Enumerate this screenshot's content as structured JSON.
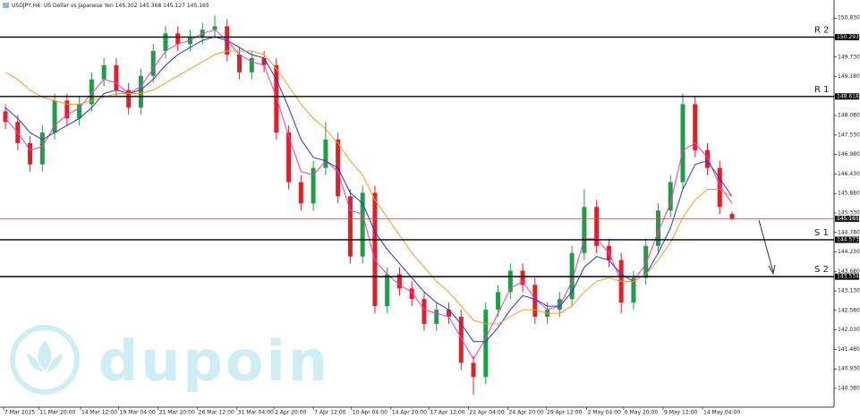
{
  "chart_data": {
    "type": "candlestick",
    "title": "USDJPY,H4:  US Dollar vs Japanese Yen  145.302 145.368 145.127 145.165",
    "watermark": "dupoin",
    "up_color": "#1e9e45",
    "down_color": "#e31e24",
    "open": [
      148.2,
      147.9,
      147.3,
      146.7,
      147.6,
      148.5,
      148.0,
      148.4,
      149.1,
      149.5,
      148.8,
      148.3,
      149.2,
      149.9,
      150.4,
      150.1,
      150.3,
      150.5,
      150.6,
      149.8,
      149.3,
      149.7,
      149.5,
      147.6,
      146.2,
      145.6,
      146.6,
      147.4,
      145.8,
      144.1,
      145.9,
      142.7,
      143.6,
      143.2,
      142.9,
      142.2,
      142.6,
      142.4,
      141.1,
      140.7,
      142.6,
      143.1,
      143.7,
      143.3,
      142.4,
      142.6,
      142.9,
      144.2,
      145.5,
      144.4,
      144.0,
      142.8,
      143.5,
      144.4,
      145.4,
      146.2,
      148.4,
      147.1,
      146.6,
      145.302
    ],
    "high": [
      148.4,
      148.1,
      147.5,
      147.8,
      148.7,
      148.7,
      148.6,
      149.3,
      149.7,
      149.7,
      149.0,
      149.4,
      150.1,
      150.6,
      150.6,
      150.5,
      150.7,
      150.9,
      150.8,
      150.0,
      149.9,
      149.9,
      149.7,
      147.8,
      146.4,
      146.8,
      147.9,
      147.6,
      146.0,
      146.1,
      146.1,
      143.8,
      143.8,
      143.4,
      143.1,
      142.8,
      142.8,
      142.6,
      141.3,
      142.8,
      143.3,
      143.9,
      143.9,
      143.5,
      142.8,
      143.1,
      144.4,
      146.0,
      145.7,
      144.6,
      144.2,
      143.7,
      144.6,
      145.6,
      146.4,
      148.7,
      148.6,
      147.3,
      146.8,
      145.368
    ],
    "low": [
      147.7,
      147.1,
      146.5,
      146.5,
      147.4,
      147.8,
      147.8,
      148.2,
      148.9,
      148.6,
      148.1,
      148.1,
      149.0,
      149.7,
      149.9,
      149.9,
      150.1,
      150.3,
      149.6,
      149.1,
      149.1,
      149.3,
      147.4,
      146.0,
      145.4,
      145.4,
      146.4,
      145.6,
      143.9,
      143.9,
      142.5,
      142.5,
      143.0,
      142.7,
      142.0,
      142.0,
      142.2,
      140.9,
      140.2,
      140.5,
      142.4,
      142.9,
      143.1,
      142.2,
      142.2,
      142.4,
      142.7,
      144.0,
      144.2,
      143.8,
      142.5,
      142.6,
      143.3,
      144.2,
      145.2,
      146.0,
      146.9,
      146.4,
      145.3,
      145.127
    ],
    "close": [
      147.9,
      147.3,
      146.7,
      147.6,
      148.5,
      148.0,
      148.4,
      149.1,
      149.5,
      148.8,
      148.3,
      149.2,
      149.9,
      150.4,
      150.1,
      150.3,
      150.5,
      150.6,
      149.8,
      149.3,
      149.7,
      149.5,
      147.6,
      146.2,
      145.6,
      146.6,
      147.4,
      145.8,
      144.1,
      145.9,
      142.7,
      143.6,
      143.2,
      142.9,
      142.2,
      142.6,
      142.4,
      141.1,
      140.7,
      142.6,
      143.1,
      143.7,
      143.3,
      142.4,
      142.6,
      142.9,
      144.2,
      145.5,
      144.4,
      144.0,
      142.8,
      143.5,
      144.4,
      145.4,
      146.2,
      148.4,
      147.1,
      146.6,
      145.5,
      145.165
    ],
    "series": [
      {
        "color": "#ff33cc",
        "values": [
          148.0,
          147.6,
          147.1,
          147.2,
          147.8,
          148.1,
          148.3,
          148.7,
          149.1,
          149.0,
          148.7,
          148.9,
          149.4,
          149.9,
          150.1,
          150.2,
          150.4,
          150.5,
          150.2,
          149.8,
          149.6,
          149.5,
          148.6,
          147.5,
          146.5,
          146.4,
          146.8,
          146.5,
          145.4,
          145.3,
          144.0,
          143.6,
          143.3,
          143.1,
          142.6,
          142.5,
          142.4,
          141.8,
          141.2,
          141.8,
          142.5,
          143.2,
          143.4,
          142.9,
          142.6,
          142.7,
          143.4,
          144.6,
          144.6,
          144.2,
          143.4,
          143.4,
          143.9,
          144.8,
          145.6,
          147.1,
          147.3,
          146.9,
          146.1,
          145.6
        ]
      },
      {
        "color": "#2233ee",
        "values": [
          148.3,
          148.0,
          147.6,
          147.4,
          147.6,
          147.8,
          148.0,
          148.3,
          148.7,
          148.8,
          148.7,
          148.8,
          149.1,
          149.5,
          149.8,
          150.0,
          150.2,
          150.3,
          150.2,
          150.0,
          149.8,
          149.7,
          149.1,
          148.3,
          147.4,
          146.9,
          146.8,
          146.6,
          145.9,
          145.6,
          144.8,
          144.3,
          143.9,
          143.5,
          143.1,
          142.8,
          142.6,
          142.2,
          141.7,
          141.7,
          142.1,
          142.6,
          143.0,
          142.9,
          142.7,
          142.7,
          143.1,
          143.8,
          144.1,
          144.0,
          143.6,
          143.4,
          143.6,
          144.2,
          144.9,
          146.0,
          146.7,
          146.8,
          146.3,
          145.8
        ]
      },
      {
        "color": "#ff9922",
        "values": [
          149.3,
          149.1,
          148.8,
          148.6,
          148.5,
          148.4,
          148.4,
          148.5,
          148.6,
          148.7,
          148.7,
          148.7,
          148.8,
          149.0,
          149.2,
          149.4,
          149.6,
          149.8,
          149.9,
          149.9,
          149.9,
          149.8,
          149.4,
          148.9,
          148.4,
          148.0,
          147.7,
          147.3,
          146.8,
          146.4,
          145.7,
          145.2,
          144.7,
          144.2,
          143.8,
          143.4,
          143.1,
          142.7,
          142.3,
          142.2,
          142.2,
          142.4,
          142.6,
          142.6,
          142.5,
          142.5,
          142.7,
          143.1,
          143.4,
          143.5,
          143.4,
          143.4,
          143.6,
          144.0,
          144.5,
          145.2,
          145.7,
          146.0,
          146.0,
          145.8
        ]
      }
    ],
    "levels": [
      {
        "name": "R 2",
        "value": 150.293
      },
      {
        "name": "R 1",
        "value": 148.618
      },
      {
        "name": "S 1",
        "value": 144.573
      },
      {
        "name": "S 2",
        "value": 143.534
      }
    ],
    "price_line": {
      "value": 145.165,
      "color": "#c0504d"
    },
    "ylim": [
      139.85,
      151.34
    ],
    "xlim": [
      -0.44,
      67.28
    ],
    "yticks": [
      {
        "value": 150.83,
        "label": "150.830"
      },
      {
        "value": 150.28,
        "label": "150.280"
      },
      {
        "value": 149.73,
        "label": "149.730"
      },
      {
        "value": 149.18,
        "label": "149.180"
      },
      {
        "value": 148.63,
        "label": "148.630"
      },
      {
        "value": 148.08,
        "label": "148.080"
      },
      {
        "value": 147.53,
        "label": "147.530"
      },
      {
        "value": 146.98,
        "label": "146.980"
      },
      {
        "value": 146.43,
        "label": "146.430"
      },
      {
        "value": 145.88,
        "label": "145.880"
      },
      {
        "value": 145.33,
        "label": "145.330"
      },
      {
        "value": 144.78,
        "label": "144.780"
      },
      {
        "value": 144.23,
        "label": "144.230"
      },
      {
        "value": 143.68,
        "label": "143.680"
      },
      {
        "value": 143.13,
        "label": "143.130"
      },
      {
        "value": 142.58,
        "label": "142.580"
      },
      {
        "value": 142.03,
        "label": "142.030"
      },
      {
        "value": 141.48,
        "label": "141.480"
      },
      {
        "value": 140.93,
        "label": "140.930"
      },
      {
        "value": 140.38,
        "label": "140.380"
      }
    ],
    "xticks": [
      {
        "value": -0.15,
        "label": "7 Mar 2025"
      },
      {
        "value": 2.7,
        "label": "11 Mar 20:00"
      },
      {
        "value": 6.1,
        "label": "14 Mar 12:00"
      },
      {
        "value": 9.2,
        "label": "19 Mar 04:00"
      },
      {
        "value": 12.4,
        "label": "21 Mar 20:00"
      },
      {
        "value": 15.6,
        "label": "26 Mar 12:00"
      },
      {
        "value": 18.8,
        "label": "31 Mar 04:00"
      },
      {
        "value": 21.8,
        "label": "2 Apr 20:00"
      },
      {
        "value": 25,
        "label": "7 Apr 12:00"
      },
      {
        "value": 28.1,
        "label": "10 Apr 04:00"
      },
      {
        "value": 31.3,
        "label": "14 Apr 20:00"
      },
      {
        "value": 34.4,
        "label": "17 Apr 12:00"
      },
      {
        "value": 37.6,
        "label": "22 Apr 04:00"
      },
      {
        "value": 40.8,
        "label": "24 Apr 20:00"
      },
      {
        "value": 43.9,
        "label": "29 Apr 12:00"
      },
      {
        "value": 47.2,
        "label": "2 May 04:00"
      },
      {
        "value": 50.2,
        "label": "6 May 20:00"
      },
      {
        "value": 53.4,
        "label": "9 May 12:00"
      },
      {
        "value": 56.6,
        "label": "14 May 04:00"
      }
    ]
  }
}
